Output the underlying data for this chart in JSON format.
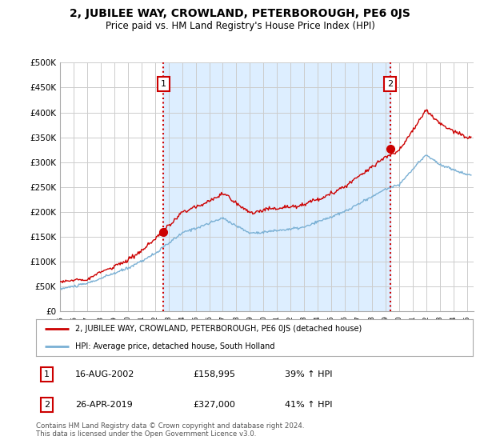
{
  "title": "2, JUBILEE WAY, CROWLAND, PETERBOROUGH, PE6 0JS",
  "subtitle": "Price paid vs. HM Land Registry's House Price Index (HPI)",
  "title_fontsize": 10,
  "subtitle_fontsize": 8.5,
  "ylim": [
    0,
    500000
  ],
  "yticks": [
    0,
    50000,
    100000,
    150000,
    200000,
    250000,
    300000,
    350000,
    400000,
    450000,
    500000
  ],
  "ytick_labels": [
    "£0",
    "£50K",
    "£100K",
    "£150K",
    "£200K",
    "£250K",
    "£300K",
    "£350K",
    "£400K",
    "£450K",
    "£500K"
  ],
  "xlim_start": 1995.0,
  "xlim_end": 2025.5,
  "xtick_years": [
    1995,
    1996,
    1997,
    1998,
    1999,
    2000,
    2001,
    2002,
    2003,
    2004,
    2005,
    2006,
    2007,
    2008,
    2009,
    2010,
    2011,
    2012,
    2013,
    2014,
    2015,
    2016,
    2017,
    2018,
    2019,
    2020,
    2021,
    2022,
    2023,
    2024,
    2025
  ],
  "sale1_x": 2002.625,
  "sale1_y": 158995,
  "sale1_label": "1",
  "sale2_x": 2019.33,
  "sale2_y": 327000,
  "sale2_label": "2",
  "line_color_red": "#cc0000",
  "line_color_blue": "#7ab0d4",
  "shade_color": "#ddeeff",
  "legend_label_red": "2, JUBILEE WAY, CROWLAND, PETERBOROUGH, PE6 0JS (detached house)",
  "legend_label_blue": "HPI: Average price, detached house, South Holland",
  "annotation1_date": "16-AUG-2002",
  "annotation1_price": "£158,995",
  "annotation1_hpi": "39% ↑ HPI",
  "annotation2_date": "26-APR-2019",
  "annotation2_price": "£327,000",
  "annotation2_hpi": "41% ↑ HPI",
  "footer_text": "Contains HM Land Registry data © Crown copyright and database right 2024.\nThis data is licensed under the Open Government Licence v3.0.",
  "background_color": "#ffffff",
  "grid_color": "#cccccc"
}
